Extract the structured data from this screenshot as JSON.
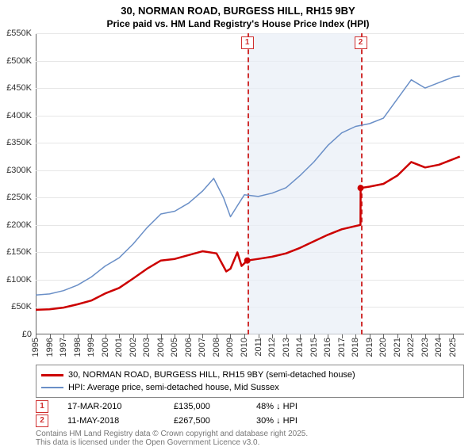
{
  "title_line1": "30, NORMAN ROAD, BURGESS HILL, RH15 9BY",
  "title_line2": "Price paid vs. HM Land Registry's House Price Index (HPI)",
  "chart": {
    "type": "line",
    "background_color": "#ffffff",
    "grid_color": "#e6e6e6",
    "axis_color": "#666666",
    "shade_color": "#e8eef7",
    "x_min_year": 1995,
    "x_max_year": 2025.8,
    "y_min": 0,
    "y_max": 550000,
    "ytick_step": 50000,
    "ytick_prefix": "£",
    "ytick_suffix": "K",
    "ytick_divisor": 1000,
    "x_ticks": [
      1995,
      1996,
      1997,
      1998,
      1999,
      2000,
      2001,
      2002,
      2003,
      2004,
      2005,
      2006,
      2007,
      2008,
      2009,
      2010,
      2011,
      2012,
      2013,
      2014,
      2015,
      2016,
      2017,
      2018,
      2019,
      2020,
      2021,
      2022,
      2023,
      2024,
      2025
    ],
    "title_fontsize": 13,
    "label_fontsize": 11,
    "shaded_ranges": [
      [
        2010.21,
        2018.36
      ]
    ],
    "markers": [
      {
        "n": 1,
        "year": 2010.21,
        "price": 135000
      },
      {
        "n": 2,
        "year": 2018.36,
        "price": 267500
      }
    ],
    "series": [
      {
        "name": "price_paid",
        "color": "#cc0000",
        "width": 2.5,
        "label": "30, NORMAN ROAD, BURGESS HILL, RH15 9BY (semi-detached house)",
        "data": [
          [
            1995,
            45000
          ],
          [
            1996,
            46000
          ],
          [
            1997,
            49000
          ],
          [
            1998,
            55000
          ],
          [
            1999,
            62000
          ],
          [
            2000,
            75000
          ],
          [
            2001,
            85000
          ],
          [
            2002,
            102000
          ],
          [
            2003,
            120000
          ],
          [
            2004,
            135000
          ],
          [
            2005,
            138000
          ],
          [
            2006,
            145000
          ],
          [
            2007,
            152000
          ],
          [
            2008,
            148000
          ],
          [
            2008.7,
            115000
          ],
          [
            2009,
            120000
          ],
          [
            2009.5,
            150000
          ],
          [
            2009.8,
            125000
          ],
          [
            2010.21,
            135000
          ],
          [
            2011,
            138000
          ],
          [
            2012,
            142000
          ],
          [
            2013,
            148000
          ],
          [
            2014,
            158000
          ],
          [
            2015,
            170000
          ],
          [
            2016,
            182000
          ],
          [
            2017,
            192000
          ],
          [
            2018,
            198000
          ],
          [
            2018.35,
            200000
          ],
          [
            2018.36,
            267500
          ],
          [
            2019,
            270000
          ],
          [
            2020,
            275000
          ],
          [
            2021,
            290000
          ],
          [
            2022,
            315000
          ],
          [
            2023,
            305000
          ],
          [
            2024,
            310000
          ],
          [
            2025,
            320000
          ],
          [
            2025.5,
            325000
          ]
        ]
      },
      {
        "name": "hpi",
        "color": "#6a8fc7",
        "width": 1.5,
        "label": "HPI: Average price, semi-detached house, Mid Sussex",
        "data": [
          [
            1995,
            72000
          ],
          [
            1996,
            74000
          ],
          [
            1997,
            80000
          ],
          [
            1998,
            90000
          ],
          [
            1999,
            105000
          ],
          [
            2000,
            125000
          ],
          [
            2001,
            140000
          ],
          [
            2002,
            165000
          ],
          [
            2003,
            195000
          ],
          [
            2004,
            220000
          ],
          [
            2005,
            225000
          ],
          [
            2006,
            240000
          ],
          [
            2007,
            262000
          ],
          [
            2007.8,
            285000
          ],
          [
            2008.5,
            250000
          ],
          [
            2009,
            215000
          ],
          [
            2009.5,
            235000
          ],
          [
            2010,
            255000
          ],
          [
            2011,
            252000
          ],
          [
            2012,
            258000
          ],
          [
            2013,
            268000
          ],
          [
            2014,
            290000
          ],
          [
            2015,
            315000
          ],
          [
            2016,
            345000
          ],
          [
            2017,
            368000
          ],
          [
            2018,
            380000
          ],
          [
            2019,
            385000
          ],
          [
            2020,
            395000
          ],
          [
            2021,
            430000
          ],
          [
            2022,
            465000
          ],
          [
            2023,
            450000
          ],
          [
            2024,
            460000
          ],
          [
            2025,
            470000
          ],
          [
            2025.5,
            472000
          ]
        ]
      }
    ]
  },
  "legend": {
    "items": [
      {
        "color": "#cc0000",
        "width": 3,
        "label": "30, NORMAN ROAD, BURGESS HILL, RH15 9BY (semi-detached house)"
      },
      {
        "color": "#6a8fc7",
        "width": 2,
        "label": "HPI: Average price, semi-detached house, Mid Sussex"
      }
    ]
  },
  "transactions": [
    {
      "n": "1",
      "date": "17-MAR-2010",
      "price": "£135,000",
      "delta": "48% ↓ HPI"
    },
    {
      "n": "2",
      "date": "11-MAY-2018",
      "price": "£267,500",
      "delta": "30% ↓ HPI"
    }
  ],
  "footer_line1": "Contains HM Land Registry data © Crown copyright and database right 2025.",
  "footer_line2": "This data is licensed under the Open Government Licence v3.0."
}
